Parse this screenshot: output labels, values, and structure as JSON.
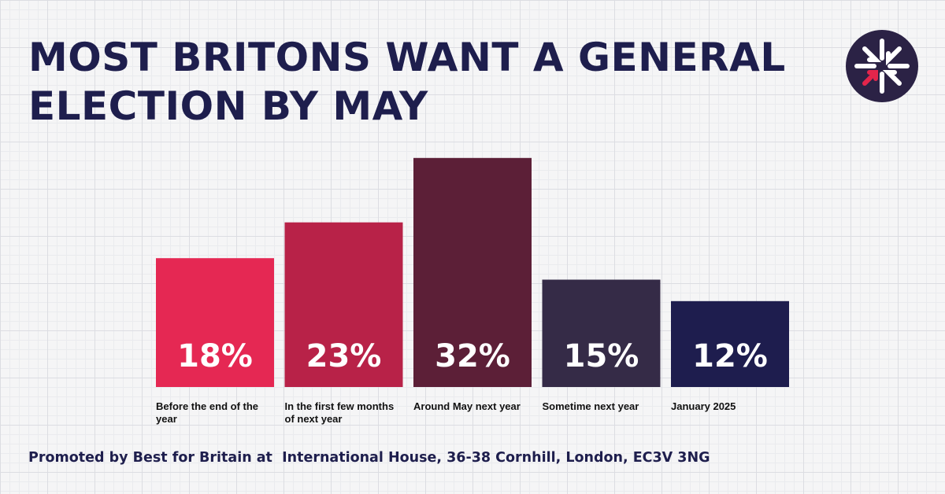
{
  "header": {
    "title": "MOST BRITONS WANT A GENERAL ELECTION BY MAY"
  },
  "footer": {
    "text": "Promoted by Best for Britain at  International House, 36-38 Cornhill, London, EC3V 3NG"
  },
  "logo": {
    "icon": "union-flag-arrows-icon",
    "colors": {
      "background": "#2b2245",
      "arrow_accent": "#e3254b",
      "arrow": "#ffffff"
    }
  },
  "chart_data": {
    "type": "bar",
    "title": "MOST BRITONS WANT A GENERAL ELECTION BY MAY",
    "xlabel": "",
    "ylabel": "",
    "ylim": [
      0,
      35
    ],
    "grid": false,
    "legend": "none",
    "categories": [
      "Before the end of the year",
      "In the first few months of next year",
      "Around May next year",
      "Sometime next year",
      "January 2025"
    ],
    "values": [
      18,
      23,
      32,
      15,
      12
    ],
    "value_labels": [
      "18%",
      "23%",
      "32%",
      "15%",
      "12%"
    ],
    "colors": [
      "#e52853",
      "#b82248",
      "#5c1f37",
      "#352b47",
      "#1e1d4e"
    ]
  }
}
